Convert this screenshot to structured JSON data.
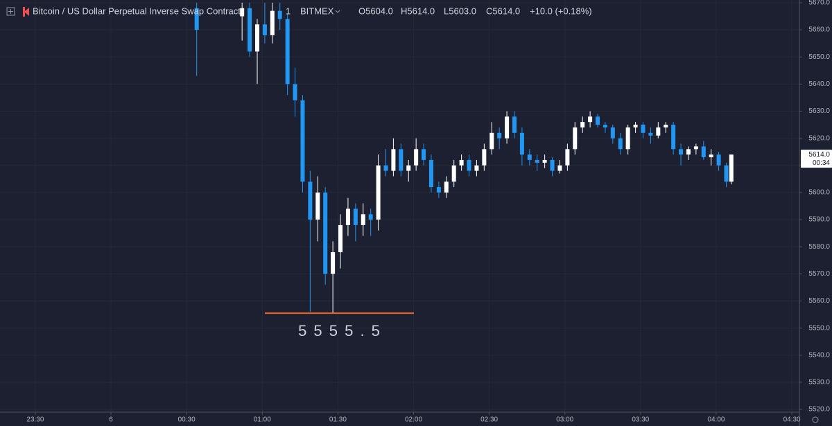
{
  "chart_data": {
    "type": "candlestick",
    "title": "Bitcoin / US Dollar Perpetual Inverse Swap Contract",
    "interval": "1",
    "exchange": "BITMEX",
    "ohlc_labels": [
      "O5604.0",
      "H5614.0",
      "L5603.0",
      "C5614.0"
    ],
    "change_label": "+10.0 (+0.18%)",
    "up_color": "#ffffff",
    "down_color": "#2196f3",
    "grid": true,
    "x": [
      "00:34",
      "00:52",
      "00:55",
      "00:58",
      "01:01",
      "01:04",
      "01:07",
      "01:10",
      "01:13",
      "01:16",
      "01:19",
      "01:22",
      "01:25",
      "01:28",
      "01:31",
      "01:34",
      "01:37",
      "01:40",
      "01:43",
      "01:46",
      "01:49",
      "01:52",
      "01:55",
      "01:58",
      "02:01",
      "02:04",
      "02:07",
      "02:10",
      "02:13",
      "02:16",
      "02:19",
      "02:22",
      "02:25",
      "02:28",
      "02:31",
      "02:34",
      "02:37",
      "02:40",
      "02:43",
      "02:46",
      "02:49",
      "02:52",
      "02:55",
      "02:58",
      "03:01",
      "03:04",
      "03:07",
      "03:10",
      "03:13",
      "03:16",
      "03:19",
      "03:22",
      "03:25",
      "03:28",
      "03:31",
      "03:34",
      "03:37",
      "03:40",
      "03:43",
      "03:46",
      "03:49",
      "03:52",
      "03:55",
      "03:58",
      "04:01",
      "04:04",
      "04:06"
    ],
    "open": [
      5668,
      5665,
      5668,
      5652,
      5662,
      5658,
      5667,
      5664,
      5640,
      5634,
      5604,
      5590,
      5600,
      5570,
      5578,
      5588,
      5594,
      5588,
      5592,
      5590,
      5610,
      5608,
      5616,
      5608,
      5610,
      5616,
      5612,
      5602,
      5600,
      5604,
      5610,
      5612,
      5608,
      5610,
      5616,
      5622,
      5620,
      5628,
      5622,
      5614,
      5612,
      5611,
      5612,
      5608,
      5610,
      5616,
      5624,
      5626,
      5628,
      5625,
      5624,
      5620,
      5616,
      5624,
      5625,
      5622,
      5621,
      5624,
      5625,
      5616,
      5614,
      5616,
      5617,
      5613,
      5614,
      5610,
      5604
    ],
    "high": [
      5670,
      5670,
      5670,
      5664,
      5670,
      5670,
      5670,
      5666,
      5646,
      5636,
      5608,
      5606,
      5602,
      5582,
      5592,
      5598,
      5596,
      5596,
      5594,
      5614,
      5616,
      5620,
      5618,
      5612,
      5620,
      5618,
      5614,
      5604,
      5606,
      5612,
      5614,
      5614,
      5612,
      5618,
      5626,
      5624,
      5630,
      5630,
      5624,
      5616,
      5614,
      5614,
      5613,
      5612,
      5618,
      5626,
      5628,
      5630,
      5629,
      5626,
      5625,
      5622,
      5625,
      5626,
      5626,
      5624,
      5626,
      5626,
      5626,
      5618,
      5617,
      5618,
      5619,
      5616,
      5615,
      5611,
      5614
    ],
    "low": [
      5643,
      5656,
      5650,
      5640,
      5655,
      5655,
      5660,
      5636,
      5628,
      5600,
      5556,
      5582,
      5566,
      5555.5,
      5572,
      5584,
      5582,
      5584,
      5584,
      5586,
      5606,
      5606,
      5606,
      5604,
      5608,
      5610,
      5600,
      5598,
      5598,
      5602,
      5608,
      5606,
      5606,
      5608,
      5614,
      5616,
      5618,
      5620,
      5610,
      5610,
      5608,
      5609,
      5606,
      5607,
      5608,
      5614,
      5622,
      5624,
      5624,
      5622,
      5618,
      5614,
      5614,
      5622,
      5620,
      5618,
      5620,
      5622,
      5614,
      5610,
      5612,
      5614,
      5612,
      5610,
      5608,
      5602,
      5603
    ],
    "close": [
      5660,
      5668,
      5652,
      5662,
      5658,
      5667,
      5664,
      5640,
      5634,
      5604,
      5590,
      5600,
      5570,
      5578,
      5588,
      5594,
      5588,
      5592,
      5590,
      5610,
      5608,
      5616,
      5608,
      5610,
      5616,
      5612,
      5602,
      5600,
      5604,
      5610,
      5612,
      5608,
      5610,
      5616,
      5622,
      5620,
      5628,
      5622,
      5614,
      5612,
      5611,
      5612,
      5608,
      5610,
      5616,
      5624,
      5626,
      5628,
      5625,
      5624,
      5620,
      5616,
      5624,
      5625,
      5622,
      5621,
      5624,
      5625,
      5616,
      5614,
      5616,
      5617,
      5613,
      5614,
      5610,
      5604,
      5614
    ],
    "xlim": [
      "23:16",
      "04:33"
    ],
    "xticks": [
      "23:30",
      {
        "value": "00:00",
        "label": "6"
      },
      "00:30",
      "01:00",
      "01:30",
      "02:00",
      "02:30",
      "03:00",
      "03:30",
      "04:00",
      "04:30"
    ],
    "ylim": [
      5519,
      5671
    ],
    "yticks": [
      {
        "value": 5520,
        "label": "5520.0"
      },
      {
        "value": 5530,
        "label": "5530.0"
      },
      {
        "value": 5540,
        "label": "5540.0"
      },
      {
        "value": 5550,
        "label": "5550.0"
      },
      {
        "value": 5560,
        "label": "5560.0"
      },
      {
        "value": 5570,
        "label": "5570.0"
      },
      {
        "value": 5580,
        "label": "5580.0"
      },
      {
        "value": 5590,
        "label": "5590.0"
      },
      {
        "value": 5600,
        "label": "5600.0"
      },
      {
        "value": 5610,
        "label": "5610.0"
      },
      {
        "value": 5620,
        "label": "5620.0"
      },
      {
        "value": 5630,
        "label": "5630.0"
      },
      {
        "value": 5640,
        "label": "5640.0"
      },
      {
        "value": 5650,
        "label": "5650.0"
      },
      {
        "value": 5660,
        "label": "5660.0"
      },
      {
        "value": 5670,
        "label": "5670.0"
      }
    ],
    "annotation": {
      "text": "5 5 5 5 . 5",
      "value": 5555.5,
      "color": "#f5641e"
    },
    "last_price_label": "5614.0",
    "countdown": "00:34"
  }
}
